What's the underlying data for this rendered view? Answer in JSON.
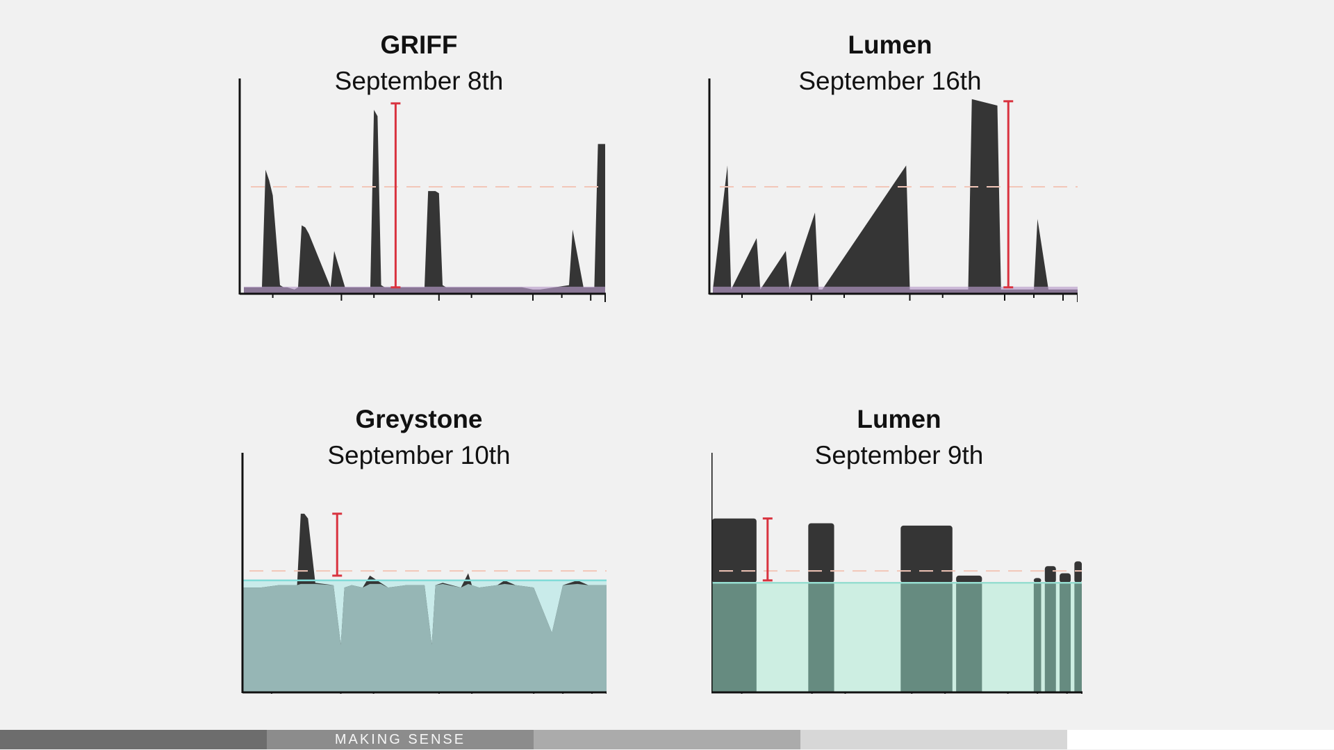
{
  "panels": [
    {
      "title": "GRIFF",
      "subtitle": "September 8th",
      "style": "purple-base",
      "colors": {
        "spikes": "#353535",
        "base": "#b89bcb",
        "threshold": "#f2c6b8",
        "marker": "#d9333f"
      },
      "chart_data": {
        "type": "area",
        "title": "GRIFF",
        "subtitle": "September 8th",
        "xlabel": "",
        "ylabel": "",
        "ylim": [
          0,
          1
        ],
        "grid": false,
        "baseline_level": 0.02,
        "threshold_level": 0.5,
        "marker_range": [
          0.03,
          0.89
        ],
        "x": [
          0,
          0.05,
          0.06,
          0.07,
          0.08,
          0.1,
          0.11,
          0.12,
          0.14,
          0.15,
          0.16,
          0.17,
          0.18,
          0.24,
          0.25,
          0.28,
          0.29,
          0.34,
          0.35,
          0.36,
          0.37,
          0.38,
          0.39,
          0.4,
          0.41,
          0.43,
          0.44,
          0.45,
          0.47,
          0.49,
          0.5,
          0.51,
          0.53,
          0.54,
          0.55,
          0.56,
          0.57,
          0.58,
          0.6,
          0.63,
          0.64,
          0.65,
          0.66,
          0.68,
          0.71,
          0.72,
          0.75,
          0.77,
          0.8,
          0.81,
          0.82,
          0.9,
          0.91,
          0.94,
          0.95,
          0.96,
          0.97,
          0.98,
          1
        ],
        "y": [
          0.03,
          0.03,
          0.58,
          0.53,
          0.46,
          0.04,
          0.03,
          0.03,
          0.02,
          0.03,
          0.32,
          0.31,
          0.28,
          0.03,
          0.2,
          0.03,
          0.03,
          0.03,
          0.03,
          0.86,
          0.83,
          0.04,
          0.03,
          0.03,
          0.03,
          0.03,
          0.03,
          0.03,
          0.03,
          0.03,
          0.03,
          0.48,
          0.48,
          0.47,
          0.04,
          0.03,
          0.03,
          0.03,
          0.03,
          0.03,
          0.03,
          0.03,
          0.03,
          0.03,
          0.03,
          0.03,
          0.03,
          0.03,
          0.02,
          0.02,
          0.02,
          0.04,
          0.3,
          0.03,
          0.03,
          0.03,
          0.03,
          0.7,
          0.7
        ],
        "marker_x": 0.42
      }
    },
    {
      "title": "Lumen",
      "subtitle": "September 16th",
      "style": "purple-base",
      "colors": {
        "spikes": "#353535",
        "base": "#b89bcb",
        "threshold": "#f2c6b8",
        "marker": "#d9333f"
      },
      "chart_data": {
        "type": "area",
        "title": "Lumen",
        "subtitle": "September 16th",
        "xlabel": "",
        "ylabel": "",
        "ylim": [
          0,
          1
        ],
        "grid": false,
        "baseline_level": 0.02,
        "threshold_level": 0.5,
        "marker_range": [
          0.03,
          0.9
        ],
        "x": [
          0,
          0.04,
          0.05,
          0.12,
          0.13,
          0.2,
          0.21,
          0.28,
          0.29,
          0.3,
          0.53,
          0.54,
          0.7,
          0.71,
          0.78,
          0.79,
          0.88,
          0.89,
          0.92,
          0.97,
          1
        ],
        "y": [
          0.02,
          0.6,
          0.02,
          0.26,
          0.02,
          0.2,
          0.02,
          0.38,
          0.02,
          0.02,
          0.6,
          0.02,
          0.02,
          0.91,
          0.88,
          0.02,
          0.02,
          0.35,
          0.02,
          0.02,
          0.02
        ],
        "marker_x": 0.81
      }
    },
    {
      "title": "Greystone",
      "subtitle": "September 10th",
      "style": "teal-area",
      "colors": {
        "spikes": "#353535",
        "area": "#96b6b5",
        "dips": "#c9ebea",
        "line": "#80dcd8",
        "threshold": "#f2c6b8",
        "marker": "#d9333f"
      },
      "chart_data": {
        "type": "area",
        "title": "Greystone",
        "subtitle": "September 10th",
        "xlabel": "",
        "ylabel": "",
        "ylim": [
          0,
          1
        ],
        "grid": false,
        "baseline_level": 0.47,
        "threshold_level": 0.51,
        "marker_range": [
          0.49,
          0.75
        ],
        "x": [
          0,
          0.05,
          0.1,
          0.15,
          0.16,
          0.17,
          0.18,
          0.2,
          0.25,
          0.27,
          0.28,
          0.3,
          0.33,
          0.35,
          0.38,
          0.4,
          0.45,
          0.5,
          0.52,
          0.53,
          0.55,
          0.6,
          0.62,
          0.63,
          0.65,
          0.7,
          0.72,
          0.75,
          0.8,
          0.85,
          0.88,
          0.92,
          0.95,
          1
        ],
        "y": [
          0.44,
          0.44,
          0.45,
          0.45,
          0.75,
          0.75,
          0.73,
          0.46,
          0.45,
          0.2,
          0.44,
          0.45,
          0.44,
          0.49,
          0.46,
          0.44,
          0.45,
          0.45,
          0.2,
          0.45,
          0.46,
          0.44,
          0.5,
          0.45,
          0.44,
          0.45,
          0.47,
          0.45,
          0.44,
          0.25,
          0.45,
          0.47,
          0.45,
          0.45
        ],
        "marker_x": 0.26
      }
    },
    {
      "title": "Lumen",
      "subtitle": "September 9th",
      "style": "mint-area",
      "colors": {
        "spikes": "#353535",
        "area": "#cdeee2",
        "overlap": "#668b80",
        "line": "#96ddd0",
        "threshold": "#f2c6b8",
        "marker": "#d9333f"
      },
      "chart_data": {
        "type": "area",
        "title": "Lumen",
        "subtitle": "September 9th",
        "xlabel": "",
        "ylabel": "",
        "ylim": [
          0,
          1
        ],
        "grid": false,
        "baseline_level": 0.46,
        "threshold_level": 0.51,
        "marker_range": [
          0.47,
          0.73
        ],
        "bars": [
          {
            "x0": 0.0,
            "x1": 0.12,
            "y": 0.73
          },
          {
            "x0": 0.26,
            "x1": 0.33,
            "y": 0.71
          },
          {
            "x0": 0.51,
            "x1": 0.65,
            "y": 0.7
          },
          {
            "x0": 0.66,
            "x1": 0.73,
            "y": 0.49
          },
          {
            "x0": 0.87,
            "x1": 0.89,
            "y": 0.48
          },
          {
            "x0": 0.9,
            "x1": 0.93,
            "y": 0.53
          },
          {
            "x0": 0.94,
            "x1": 0.97,
            "y": 0.5
          },
          {
            "x0": 0.98,
            "x1": 1.0,
            "y": 0.55
          }
        ],
        "marker_x": 0.15
      }
    }
  ],
  "footer": {
    "label": "MAKING SENSE",
    "colors": [
      "#6d6d6d",
      "#8c8c8c",
      "#ababab",
      "#d7d7d7",
      "#ffffff"
    ]
  }
}
